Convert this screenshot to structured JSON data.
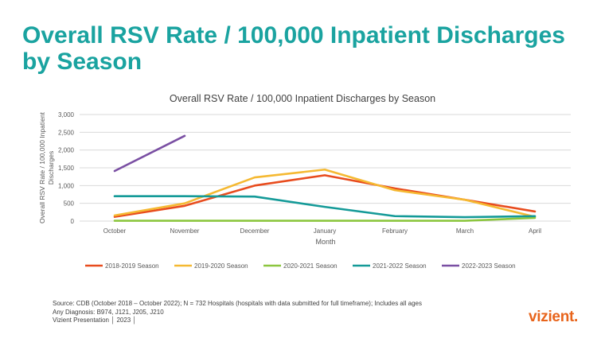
{
  "slide": {
    "title": "Overall RSV Rate / 100,000 Inpatient Discharges by Season"
  },
  "chart_data": {
    "type": "line",
    "title": "Overall RSV Rate / 100,000 Inpatient Discharges by Season",
    "xlabel": "Month",
    "ylabel": "Overall RSV Rate / 100,000 Inpatient Discharges",
    "categories": [
      "October",
      "November",
      "December",
      "January",
      "February",
      "March",
      "April"
    ],
    "ylim": [
      0,
      3000
    ],
    "yticks": [
      0,
      500,
      1000,
      1500,
      2000,
      2500,
      3000
    ],
    "ytick_labels": [
      "0",
      "500",
      "1,000",
      "1,500",
      "2,000",
      "2,500",
      "3,000"
    ],
    "grid": true,
    "legend_position": "bottom",
    "series": [
      {
        "name": "2018-2019 Season",
        "color": "#e84c1e",
        "values": [
          120,
          430,
          1000,
          1290,
          920,
          600,
          270
        ]
      },
      {
        "name": "2019-2020 Season",
        "color": "#f5b932",
        "values": [
          160,
          500,
          1230,
          1450,
          870,
          600,
          120
        ]
      },
      {
        "name": "2020-2021 Season",
        "color": "#8cc63f",
        "values": [
          10,
          10,
          10,
          10,
          10,
          10,
          90
        ]
      },
      {
        "name": "2021-2022 Season",
        "color": "#149a98",
        "values": [
          700,
          700,
          690,
          400,
          140,
          110,
          140
        ]
      },
      {
        "name": "2022-2023 Season",
        "color": "#7a4fa3",
        "values": [
          1410,
          2400,
          null,
          null,
          null,
          null,
          null
        ]
      }
    ]
  },
  "footer": {
    "line1": "Source: CDB (October 2018 – October 2022); N = 732 Hospitals (hospitals with data submitted for full timeframe); Includes all ages",
    "line2": "Any Diagnosis: B974, J121, J205, J210",
    "line3": "Vizient Presentation  │  2023  │"
  },
  "logo": {
    "text": "vizient."
  }
}
